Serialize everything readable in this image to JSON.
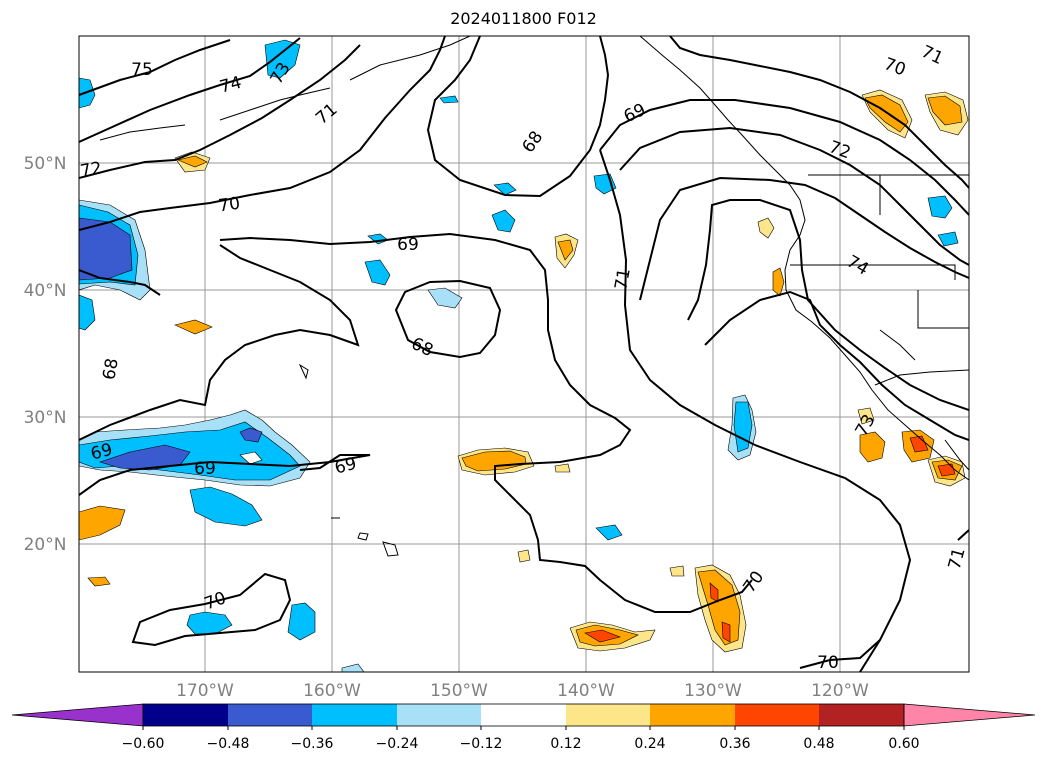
{
  "title": "2024011800 F012",
  "lat_labels": [
    "50°N",
    "40°N",
    "30°N",
    "20°N"
  ],
  "lon_labels": [
    "170°W",
    "160°W",
    "150°W",
    "140°W",
    "130°W",
    "120°W"
  ],
  "contour_labels": [
    "75",
    "74",
    "73",
    "71",
    "72",
    "70",
    "69",
    "68",
    "69",
    "68",
    "68",
    "69",
    "69",
    "69",
    "70",
    "70",
    "70",
    "71",
    "72",
    "74",
    "73",
    "71",
    "70",
    "71"
  ],
  "colorbar": {
    "ticks": [
      "−0.60",
      "−0.48",
      "−0.36",
      "−0.24",
      "−0.12",
      "0.12",
      "0.24",
      "0.36",
      "0.48",
      "0.60"
    ],
    "colors": [
      "#9932cc",
      "#00008b",
      "#3a5bd0",
      "#00bfff",
      "#a8e0f8",
      "#ffffff",
      "#fde68a",
      "#ffa500",
      "#ff4500",
      "#b22222",
      "#ff85a8"
    ]
  }
}
